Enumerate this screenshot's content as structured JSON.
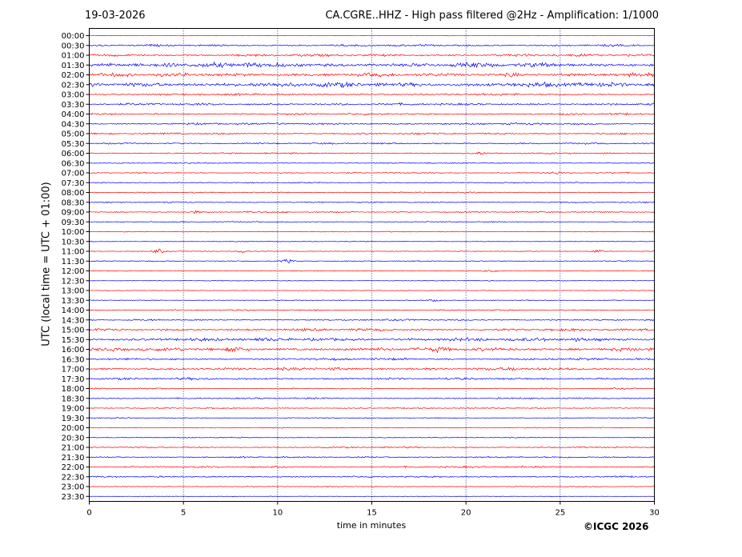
{
  "header": {
    "date": "19-03-2026",
    "title": "CA.CGRE..HHZ - High pass filtered @2Hz - Amplification: 1/1000"
  },
  "footer": {
    "copyright": "©ICGC 2026"
  },
  "chart_data": {
    "type": "line",
    "xlabel": "time in minutes",
    "ylabel": "UTC (local time = UTC + 01:00)",
    "xlim": [
      0,
      30
    ],
    "x_ticks": [
      0,
      5,
      10,
      15,
      20,
      25,
      30
    ],
    "grid": "vertical dotted lines at x ticks",
    "colors": {
      "hour_trace": "#ff0000",
      "half_hour_trace": "#0000ff",
      "grid": "#000080"
    },
    "rows": [
      "00:00",
      "00:30",
      "01:00",
      "01:30",
      "02:00",
      "02:30",
      "03:00",
      "03:30",
      "04:00",
      "04:30",
      "05:00",
      "05:30",
      "06:00",
      "06:30",
      "07:00",
      "07:30",
      "08:00",
      "08:30",
      "09:00",
      "09:30",
      "10:00",
      "10:30",
      "11:00",
      "11:30",
      "12:00",
      "12:30",
      "13:00",
      "13:30",
      "14:00",
      "14:30",
      "15:00",
      "15:30",
      "16:00",
      "16:30",
      "17:00",
      "17:30",
      "18:00",
      "18:30",
      "19:00",
      "19:30",
      "20:00",
      "20:30",
      "21:00",
      "21:30",
      "22:00",
      "22:30",
      "23:00",
      "23:30"
    ],
    "noise_level": [
      0.3,
      1.2,
      1.5,
      2.6,
      2.1,
      2.8,
      1.2,
      1.3,
      1.1,
      1.2,
      1.1,
      1.0,
      0.9,
      0.6,
      0.7,
      0.7,
      0.7,
      0.8,
      0.8,
      0.6,
      0.5,
      0.5,
      0.5,
      0.6,
      0.5,
      0.5,
      0.4,
      0.6,
      0.8,
      1.0,
      1.5,
      2.0,
      2.2,
      1.3,
      1.6,
      1.3,
      0.8,
      0.9,
      0.7,
      0.6,
      0.6,
      0.6,
      0.9,
      0.9,
      1.0,
      0.9,
      0.5,
      0.3
    ],
    "events": [
      {
        "row": "01:30",
        "x": [
          1.0,
          4.5,
          8.5
        ],
        "amp": [
          1.8,
          1.5,
          1.8
        ]
      },
      {
        "row": "02:00",
        "x": [
          22.5
        ],
        "amp": [
          1.8
        ]
      },
      {
        "row": "06:00",
        "x": [
          20.7
        ],
        "amp": [
          1.2
        ]
      },
      {
        "row": "07:00",
        "x": [
          24.8
        ],
        "amp": [
          1.4
        ]
      },
      {
        "row": "09:00",
        "x": [
          5.6,
          8.5
        ],
        "amp": [
          1.4,
          1.0
        ]
      },
      {
        "row": "11:00",
        "x": [
          3.7,
          8.2,
          27.0
        ],
        "amp": [
          2.6,
          1.8,
          2.0
        ]
      },
      {
        "row": "11:30",
        "x": [
          10.5
        ],
        "amp": [
          2.2
        ]
      },
      {
        "row": "12:00",
        "x": [
          21.3
        ],
        "amp": [
          2.0
        ]
      },
      {
        "row": "13:30",
        "x": [
          18.3
        ],
        "amp": [
          1.2
        ]
      },
      {
        "row": "15:30",
        "x": [
          26.0
        ],
        "amp": [
          1.8
        ]
      },
      {
        "row": "16:00",
        "x": [
          7.8,
          18.5
        ],
        "amp": [
          2.0,
          1.5
        ]
      },
      {
        "row": "17:00",
        "x": [
          13.0,
          22.5
        ],
        "amp": [
          1.4,
          1.2
        ]
      }
    ]
  }
}
